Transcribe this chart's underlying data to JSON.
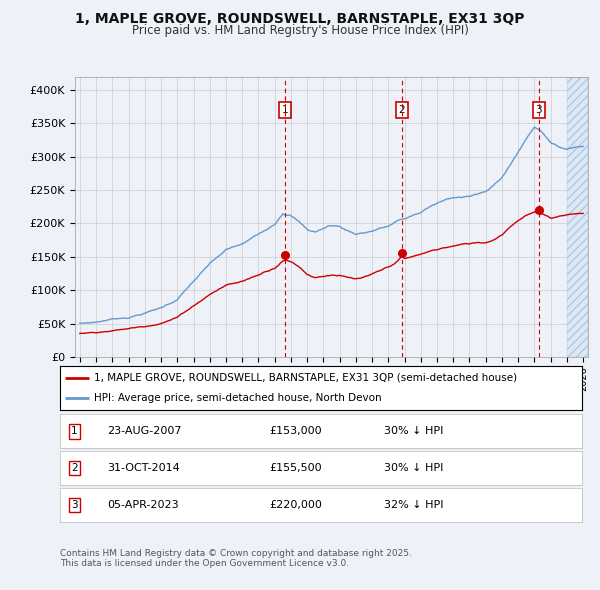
{
  "title_line1": "1, MAPLE GROVE, ROUNDSWELL, BARNSTAPLE, EX31 3QP",
  "title_line2": "Price paid vs. HM Land Registry's House Price Index (HPI)",
  "ylim": [
    0,
    420000
  ],
  "yticks": [
    0,
    50000,
    100000,
    150000,
    200000,
    250000,
    300000,
    350000,
    400000
  ],
  "ytick_labels": [
    "£0",
    "£50K",
    "£100K",
    "£150K",
    "£200K",
    "£250K",
    "£300K",
    "£350K",
    "£400K"
  ],
  "xlim_start": 1994.7,
  "xlim_end": 2026.3,
  "sale_dates": [
    2007.646,
    2014.831,
    2023.258
  ],
  "sale_prices": [
    153000,
    155500,
    220000
  ],
  "sale_labels": [
    "1",
    "2",
    "3"
  ],
  "sale_date_strs": [
    "23-AUG-2007",
    "31-OCT-2014",
    "05-APR-2023"
  ],
  "sale_price_strs": [
    "£153,000",
    "£155,500",
    "£220,000"
  ],
  "sale_hpi_strs": [
    "30% ↓ HPI",
    "30% ↓ HPI",
    "32% ↓ HPI"
  ],
  "legend_label_red": "1, MAPLE GROVE, ROUNDSWELL, BARNSTAPLE, EX31 3QP (semi-detached house)",
  "legend_label_blue": "HPI: Average price, semi-detached house, North Devon",
  "footer_line1": "Contains HM Land Registry data © Crown copyright and database right 2025.",
  "footer_line2": "This data is licensed under the Open Government Licence v3.0.",
  "red_color": "#cc0000",
  "blue_color": "#6699cc",
  "bg_color": "#eef2f8",
  "grid_color": "#cccccc",
  "hatch_start": 2025.0,
  "hpi_keypoints": [
    [
      1995.0,
      50000
    ],
    [
      1996.0,
      52000
    ],
    [
      1997.0,
      57000
    ],
    [
      1998.0,
      60000
    ],
    [
      1999.0,
      67000
    ],
    [
      2000.0,
      75000
    ],
    [
      2001.0,
      88000
    ],
    [
      2002.0,
      115000
    ],
    [
      2003.0,
      140000
    ],
    [
      2004.0,
      160000
    ],
    [
      2005.0,
      168000
    ],
    [
      2006.0,
      182000
    ],
    [
      2007.0,
      200000
    ],
    [
      2007.5,
      218000
    ],
    [
      2008.0,
      215000
    ],
    [
      2008.5,
      205000
    ],
    [
      2009.0,
      193000
    ],
    [
      2009.5,
      190000
    ],
    [
      2010.0,
      195000
    ],
    [
      2010.5,
      200000
    ],
    [
      2011.0,
      198000
    ],
    [
      2011.5,
      192000
    ],
    [
      2012.0,
      188000
    ],
    [
      2012.5,
      190000
    ],
    [
      2013.0,
      193000
    ],
    [
      2013.5,
      197000
    ],
    [
      2014.0,
      200000
    ],
    [
      2014.5,
      207000
    ],
    [
      2015.0,
      210000
    ],
    [
      2015.5,
      215000
    ],
    [
      2016.0,
      220000
    ],
    [
      2016.5,
      228000
    ],
    [
      2017.0,
      233000
    ],
    [
      2017.5,
      238000
    ],
    [
      2018.0,
      240000
    ],
    [
      2018.5,
      243000
    ],
    [
      2019.0,
      245000
    ],
    [
      2019.5,
      248000
    ],
    [
      2020.0,
      250000
    ],
    [
      2020.5,
      260000
    ],
    [
      2021.0,
      272000
    ],
    [
      2021.5,
      290000
    ],
    [
      2022.0,
      310000
    ],
    [
      2022.5,
      330000
    ],
    [
      2023.0,
      348000
    ],
    [
      2023.258,
      345000
    ],
    [
      2023.5,
      340000
    ],
    [
      2023.8,
      332000
    ],
    [
      2024.0,
      325000
    ],
    [
      2024.5,
      318000
    ],
    [
      2025.0,
      315000
    ],
    [
      2025.5,
      318000
    ],
    [
      2026.0,
      320000
    ]
  ],
  "red_keypoints": [
    [
      1995.0,
      35000
    ],
    [
      1996.0,
      37000
    ],
    [
      1997.0,
      40000
    ],
    [
      1998.0,
      43000
    ],
    [
      1999.0,
      47000
    ],
    [
      2000.0,
      53000
    ],
    [
      2001.0,
      62000
    ],
    [
      2002.0,
      80000
    ],
    [
      2003.0,
      98000
    ],
    [
      2004.0,
      112000
    ],
    [
      2005.0,
      118000
    ],
    [
      2006.0,
      128000
    ],
    [
      2007.0,
      140000
    ],
    [
      2007.5,
      152000
    ],
    [
      2007.646,
      153000
    ],
    [
      2008.0,
      150000
    ],
    [
      2008.5,
      143000
    ],
    [
      2009.0,
      132000
    ],
    [
      2009.5,
      128000
    ],
    [
      2010.0,
      130000
    ],
    [
      2010.5,
      133000
    ],
    [
      2011.0,
      132000
    ],
    [
      2011.5,
      128000
    ],
    [
      2012.0,
      125000
    ],
    [
      2012.5,
      127000
    ],
    [
      2013.0,
      130000
    ],
    [
      2013.5,
      135000
    ],
    [
      2014.0,
      140000
    ],
    [
      2014.5,
      148000
    ],
    [
      2014.831,
      155500
    ],
    [
      2015.0,
      152000
    ],
    [
      2015.5,
      155000
    ],
    [
      2016.0,
      158000
    ],
    [
      2016.5,
      162000
    ],
    [
      2017.0,
      165000
    ],
    [
      2017.5,
      168000
    ],
    [
      2018.0,
      170000
    ],
    [
      2018.5,
      172000
    ],
    [
      2019.0,
      173000
    ],
    [
      2019.5,
      175000
    ],
    [
      2020.0,
      175000
    ],
    [
      2020.5,
      180000
    ],
    [
      2021.0,
      188000
    ],
    [
      2021.5,
      200000
    ],
    [
      2022.0,
      210000
    ],
    [
      2022.5,
      218000
    ],
    [
      2023.0,
      222000
    ],
    [
      2023.258,
      220000
    ],
    [
      2023.5,
      218000
    ],
    [
      2023.8,
      215000
    ],
    [
      2024.0,
      212000
    ],
    [
      2024.5,
      215000
    ],
    [
      2025.0,
      218000
    ],
    [
      2026.0,
      220000
    ]
  ]
}
